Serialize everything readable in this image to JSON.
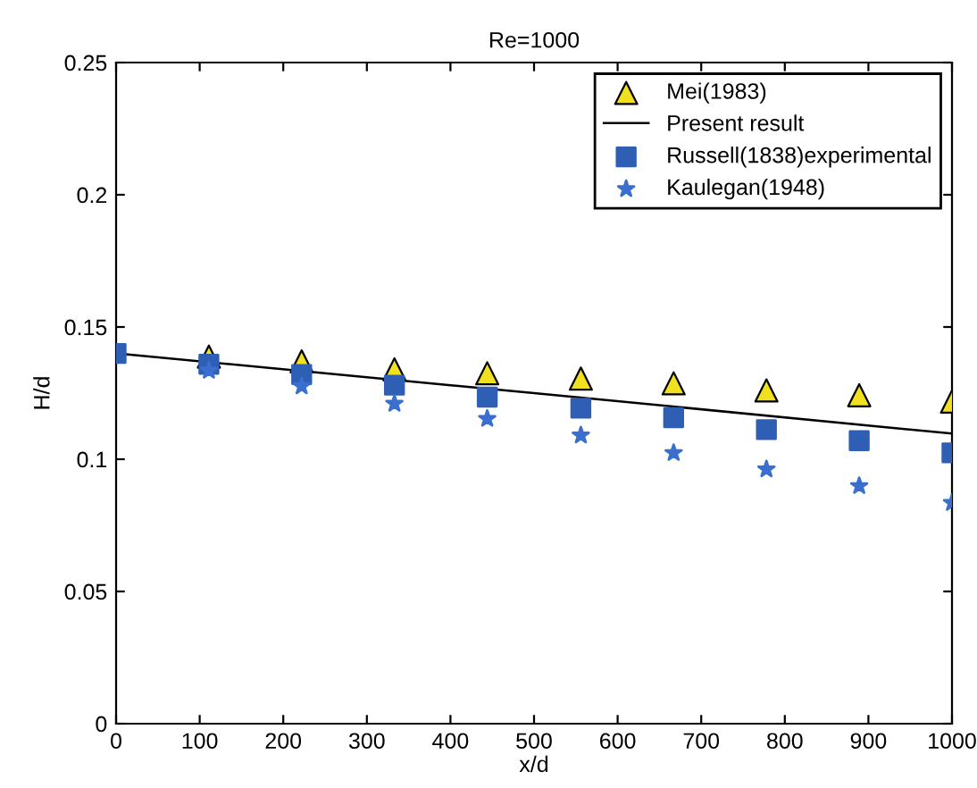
{
  "chart_data": {
    "type": "scatter",
    "title": "Re=1000",
    "xlabel": "x/d",
    "ylabel": "H/d",
    "x": [
      0,
      111,
      222,
      333,
      444,
      556,
      667,
      778,
      889,
      1000
    ],
    "series": [
      {
        "name": "Mei(1983)",
        "marker": "triangle",
        "color": "#f0e020",
        "values": [
          null,
          0.1388,
          0.137,
          0.134,
          0.1325,
          0.1305,
          0.1287,
          0.126,
          0.1242,
          0.1218
        ]
      },
      {
        "name": "Present result",
        "type": "line",
        "marker": "none",
        "color": "#000000",
        "x": [
          0,
          500,
          1000
        ],
        "values": [
          0.14,
          0.125,
          0.1097
        ]
      },
      {
        "name": "Russell(1838)experimental",
        "marker": "square",
        "color": "#2e5fb4",
        "values": [
          0.14,
          0.1359,
          0.132,
          0.128,
          0.1235,
          0.1193,
          0.1157,
          0.1112,
          0.107,
          0.1024
        ]
      },
      {
        "name": "Kaulegan(1948)",
        "marker": "star",
        "color": "#3a6fd0",
        "values": [
          null,
          0.1335,
          0.1276,
          0.121,
          0.1153,
          0.109,
          0.1024,
          0.0962,
          0.0899,
          0.0835
        ]
      }
    ],
    "xlim": [
      0,
      1000
    ],
    "xticks": [
      0,
      100,
      200,
      300,
      400,
      500,
      600,
      700,
      800,
      900,
      1000
    ],
    "ylim": [
      0,
      0.25
    ],
    "yticks": [
      0,
      0.05,
      0.1,
      0.15,
      0.2,
      0.25
    ],
    "legend": "top right",
    "grid": false
  }
}
